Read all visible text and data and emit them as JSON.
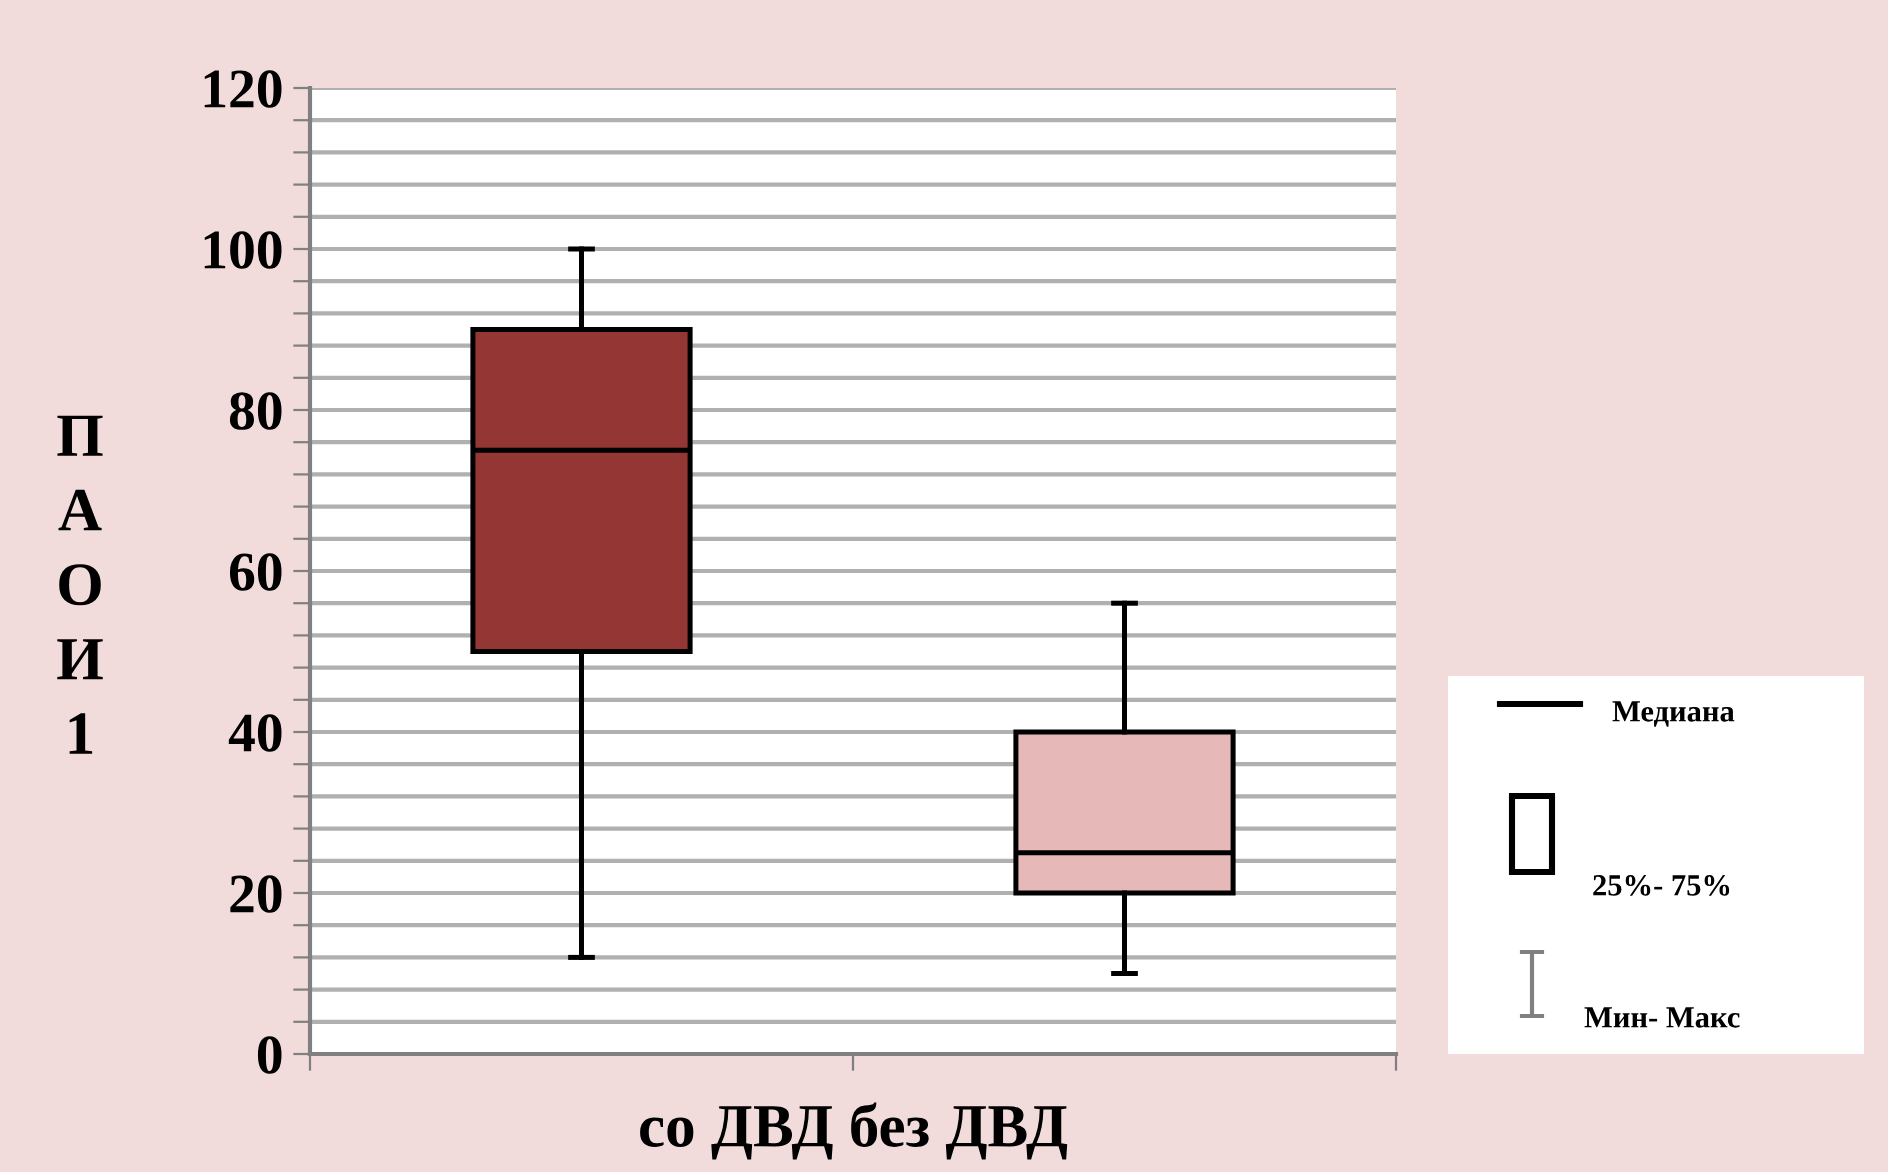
{
  "chart_data": {
    "type": "box",
    "categories": [
      null,
      null
    ],
    "xlabel": "со ДВД без ДВД",
    "ylabel": "ПАОИ 1",
    "series": [
      {
        "colors": [
          "#943634",
          "#e6b8b7"
        ],
        "boxes": [
          {
            "low": 12,
            "q1": 50,
            "median": 75,
            "q3": 90,
            "high": 100
          },
          {
            "low": 10,
            "q1": 20,
            "median": 25,
            "q3": 40,
            "high": 56
          }
        ]
      }
    ],
    "ylim": [
      0,
      120
    ],
    "yticks": [
      0,
      {
        "value": 4,
        "label": null
      },
      {
        "value": 8,
        "label": null
      },
      {
        "value": 12,
        "label": null
      },
      {
        "value": 16,
        "label": null
      },
      20,
      {
        "value": 24,
        "label": null
      },
      {
        "value": 28,
        "label": null
      },
      {
        "value": 32,
        "label": null
      },
      {
        "value": 36,
        "label": null
      },
      40,
      {
        "value": 44,
        "label": null
      },
      {
        "value": 48,
        "label": null
      },
      {
        "value": 52,
        "label": null
      },
      {
        "value": 56,
        "label": null
      },
      60,
      {
        "value": 64,
        "label": null
      },
      {
        "value": 68,
        "label": null
      },
      {
        "value": 72,
        "label": null
      },
      {
        "value": 76,
        "label": null
      },
      80,
      {
        "value": 84,
        "label": null
      },
      {
        "value": 88,
        "label": null
      },
      {
        "value": 92,
        "label": null
      },
      {
        "value": 96,
        "label": null
      },
      100,
      {
        "value": 104,
        "label": null
      },
      {
        "value": 108,
        "label": null
      },
      {
        "value": 112,
        "label": null
      },
      {
        "value": 116,
        "label": null
      },
      120
    ],
    "grid": "y",
    "annotations": [
      "Медиана",
      "25%- 75%",
      "Мин- Макс"
    ]
  }
}
